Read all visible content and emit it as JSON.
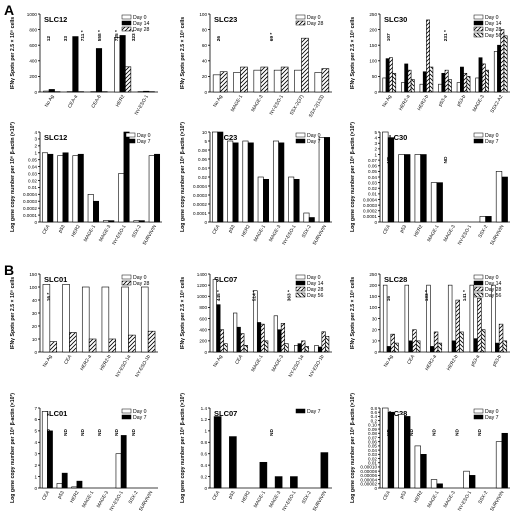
{
  "panel_letters": [
    "A",
    "B"
  ],
  "chart_data": [
    {
      "id": "A1",
      "type": "bar",
      "title": "SLC12",
      "ylabel": "IFNγ Spots per 2.5 × 10⁵ cells",
      "ylim": [
        0,
        1000
      ],
      "yticks": [
        "0",
        "200",
        "400",
        "600",
        "800",
        "1000"
      ],
      "categories": [
        "No Ag",
        "CEA-a",
        "CEA-6",
        "HER2",
        "NY-ESO-1"
      ],
      "series": [
        {
          "name": "Day 0",
          "values": [
            12,
            5,
            5,
            700,
            5
          ]
        },
        {
          "name": "Day 14",
          "values": [
            33,
            711,
            558,
            725,
            10
          ]
        },
        {
          "name": "Day 28",
          "values": [
            5,
            5,
            5,
            323,
            5
          ]
        }
      ],
      "annotations": [
        "12",
        "33",
        "711 *",
        "558 *",
        "725 *",
        "323 *"
      ]
    },
    {
      "id": "A2",
      "type": "bar",
      "title": "SLC23",
      "ylabel": "IFNγ Spots per 2.5 × 10⁵ cells",
      "ylim": [
        0,
        100
      ],
      "yticks": [
        "0",
        "20",
        "40",
        "60",
        "80",
        "100"
      ],
      "categories": [
        "No Ag",
        "MAGE-1",
        "MAGE-3",
        "NY-ESO-1",
        "SSX-2(37)",
        "SSX-2(133)"
      ],
      "series": [
        {
          "name": "Day 0",
          "values": [
            22,
            25,
            28,
            28,
            28,
            25
          ]
        },
        {
          "name": "Day 28",
          "values": [
            26,
            32,
            32,
            32,
            69,
            30
          ]
        }
      ],
      "annotations": [
        "26",
        "69 *"
      ]
    },
    {
      "id": "A3",
      "type": "bar",
      "title": "SLC30",
      "ylabel": "IFNγ Spots per 2.5 × 10⁵ cells",
      "ylim": [
        0,
        250
      ],
      "yticks": [
        "0",
        "50",
        "100",
        "150",
        "200",
        "250"
      ],
      "categories": [
        "No Ag",
        "HER2-a",
        "HER2-b",
        "p53-a",
        "p53-b",
        "MAGE-3",
        "SSX2-A2"
      ],
      "series": [
        {
          "name": "Day 0",
          "values": [
            45,
            30,
            25,
            25,
            30,
            45,
            130
          ]
        },
        {
          "name": "Day 14",
          "values": [
            107,
            90,
            65,
            60,
            80,
            110,
            150
          ]
        },
        {
          "name": "Day 28",
          "values": [
            110,
            70,
            231,
            70,
            60,
            90,
            200
          ]
        },
        {
          "name": "Day 56",
          "values": [
            60,
            40,
            80,
            40,
            50,
            70,
            180
          ]
        }
      ],
      "annotations": [
        "107",
        "231 *"
      ]
    },
    {
      "id": "A4",
      "type": "bar",
      "title": "SLC12",
      "ylabel": "Log gene copy number per 10⁶ β-actin (×10³)",
      "yticks": [
        "0",
        "0.0001",
        "0.0002",
        "0.0003",
        "0.0004",
        "0.01",
        "0.02",
        "0.03",
        "0.04",
        "0.05",
        "1",
        "2",
        "3",
        "4"
      ],
      "categories": [
        "CEA",
        "p53",
        "HER2",
        "MAGE-1",
        "MAGE-3",
        "NY-ESO-1",
        "SSX-2",
        "SURVIVIN"
      ],
      "series": [
        {
          "name": "Day 0",
          "values": [
            1,
            0.6,
            0.6,
            0.0004,
            2e-05,
            0.03,
            2e-05,
            0.6
          ]
        },
        {
          "name": "Day 7",
          "values": [
            0.8,
            1,
            0.8,
            0.0003,
            2e-05,
            4,
            2e-05,
            0.8
          ]
        }
      ]
    },
    {
      "id": "A5",
      "type": "bar",
      "title": "SLC23",
      "ylabel": "Log gene copy number per 10⁶ β-actin (×10³)",
      "yticks": [
        "0",
        "0.0001",
        "0.0002",
        "0.0003",
        "0.0004",
        "0.02",
        "0.04",
        "0.06",
        "0.08",
        "5",
        "10"
      ],
      "categories": [
        "CEA",
        "p53",
        "HER2",
        "MAGE-1",
        "MAGE-3",
        "NY-ESO-1",
        "SSX-2",
        "SURVIVIN"
      ],
      "series": [
        {
          "name": "Day 0",
          "values": [
            10,
            5,
            5,
            0.02,
            5,
            0.02,
            0.0001,
            7
          ]
        },
        {
          "name": "Day 7",
          "values": [
            10,
            4,
            4,
            0.015,
            4,
            0.015,
            5e-05,
            7
          ]
        }
      ]
    },
    {
      "id": "A6",
      "type": "bar",
      "title": "SLC30",
      "ylabel": "Log gene copy number per 10⁶ β-actin (×10³)",
      "yticks": [
        "0",
        "0.0001",
        "0.0002",
        "0.0003",
        "0.0004",
        "0.01",
        "0.02",
        "0.03",
        "0.04",
        "0.05",
        "0.06",
        "0.07",
        "1",
        "2",
        "3",
        "4",
        "5"
      ],
      "categories": [
        "CEA",
        "p53",
        "HER2",
        "MAGE-1",
        "MAGE-3",
        "NY-ESO-1",
        "SSX-2",
        "SURVIVIN"
      ],
      "series": [
        {
          "name": "Day 0",
          "values": [
            5,
            1,
            1,
            0.03,
            0,
            0,
            0.0001,
            0.05
          ]
        },
        {
          "name": "Day 7",
          "values": [
            4,
            1,
            1,
            0.03,
            0,
            0,
            0.0001,
            0.04
          ]
        }
      ],
      "annotations": [
        "ND",
        "ND"
      ]
    },
    {
      "id": "B1",
      "type": "bar",
      "title": "SLC01",
      "ylabel": "IFNγ Spots per 2.5 × 10⁵ cells",
      "yticks": [
        "0",
        "10",
        "20",
        "30",
        "40",
        "100",
        "150"
      ],
      "categories": [
        "No Ag",
        "CEA",
        "HER2-a",
        "HER2-b",
        "NY-ESO-1a",
        "NY-ESO-1b"
      ],
      "series": [
        {
          "name": "Day 0",
          "values": [
            110,
            110,
            100,
            100,
            100,
            100
          ]
        },
        {
          "name": "Day 28",
          "values": [
            8,
            15,
            10,
            10,
            13,
            16
          ]
        }
      ],
      "annotations": [
        "16 *"
      ]
    },
    {
      "id": "B2",
      "type": "bar",
      "title": "SLC07",
      "ylabel": "IFNγ Spots per 2.5 × 10⁵ cells",
      "ylim": [
        0,
        1400
      ],
      "yticks": [
        "0",
        "200",
        "400",
        "600",
        "800",
        "1000",
        "1200",
        "1400"
      ],
      "categories": [
        "No Ag",
        "CEA",
        "MAGE-1",
        "MAGE-3",
        "NY-ESO-1a",
        "NY-ESO-1b"
      ],
      "series": [
        {
          "name": "Day 0",
          "values": [
            1300,
            700,
            1100,
            650,
            120,
            120
          ]
        },
        {
          "name": "Day 14",
          "values": [
            850,
            445,
            530,
            400,
            150,
            90
          ]
        },
        {
          "name": "Day 28",
          "values": [
            400,
            330,
            500,
            514,
            200,
            363
          ]
        },
        {
          "name": "Day 56",
          "values": [
            150,
            120,
            200,
            150,
            100,
            280
          ]
        }
      ],
      "annotations": [
        "445 *",
        "514 *",
        "363 *"
      ]
    },
    {
      "id": "B3",
      "type": "bar",
      "title": "SLC28",
      "ylabel": "IFNγ Spots per 2.5 × 10⁵ cells",
      "yticks": [
        "0",
        "10",
        "20",
        "30",
        "100",
        "150",
        "200",
        "250"
      ],
      "categories": [
        "No Ag",
        "CEA",
        "HER2-a",
        "HER2-b",
        "p53-a",
        "p53-b"
      ],
      "series": [
        {
          "name": "Day 0",
          "values": [
            200,
            200,
            200,
            200,
            200,
            200
          ]
        },
        {
          "name": "Day 14",
          "values": [
            5,
            10,
            5,
            10,
            12,
            8
          ]
        },
        {
          "name": "Day 28",
          "values": [
            16,
            20,
            18,
            133,
            141,
            25
          ]
        },
        {
          "name": "Day 56",
          "values": [
            8,
            10,
            8,
            18,
            20,
            10
          ]
        }
      ],
      "annotations": [
        "16",
        "133 *",
        "141 *"
      ]
    },
    {
      "id": "B4",
      "type": "bar",
      "title": "SLC01",
      "ylabel": "Log gene copy number per 10⁶ β-actin (×10³)",
      "ylim": [
        0,
        7
      ],
      "yticks": [
        "0",
        "1",
        "2",
        "3",
        "4",
        "5",
        "6",
        "7"
      ],
      "categories": [
        "CEA",
        "p53",
        "HER2",
        "MAGE-1",
        "MAGE-3",
        "NY-ESO-1",
        "SSX-2",
        "SURVIVIN"
      ],
      "series": [
        {
          "name": "Day 0",
          "values": [
            6.7,
            0.4,
            0.1,
            0,
            0,
            3,
            0,
            0
          ]
        },
        {
          "name": "Day 7",
          "values": [
            5,
            1.3,
            0.6,
            0,
            0,
            4.6,
            0,
            0
          ]
        }
      ],
      "annotations": [
        "ND",
        "ND",
        "ND",
        "ND",
        "ND",
        "ND"
      ]
    },
    {
      "id": "B5",
      "type": "bar",
      "title": "SLC07",
      "ylabel": "Log gene copy number per 10⁶ β-actin (×10³)",
      "ylim": [
        0,
        1.4
      ],
      "yticks": [
        "0",
        "0.2",
        "0.4",
        "0.6",
        "0.8",
        "1",
        "1.2",
        "1.4"
      ],
      "categories": [
        "CEA",
        "p53",
        "HER2",
        "MAGE-1",
        "MAGE-3",
        "NY-ESO-1",
        "SSX-2",
        "SURVIVIN"
      ],
      "series": [
        {
          "name": "Day 7",
          "values": [
            1.25,
            0.9,
            0,
            0.45,
            0.2,
            0.2,
            0,
            0.62
          ]
        }
      ],
      "annotations": [
        "ND",
        "ND"
      ]
    },
    {
      "id": "B6",
      "type": "bar",
      "title": "SLC28",
      "ylabel": "Log gene copy number per 10⁶ β-actin (×10³)",
      "yticks": [
        "0",
        "0.00002",
        "0.00004",
        "0.00006",
        "0.00008",
        "0.00010",
        "0.01",
        "0.02",
        "0.03",
        "0.04",
        "0.05",
        "0.06",
        "0.07",
        "0.08",
        "0.09",
        "0.10",
        "0.2",
        "0.4",
        "0.6",
        "0.8"
      ],
      "categories": [
        "CEA",
        "p53",
        "HER2",
        "MAGE-1",
        "MAGE-3",
        "NY-ESO-1",
        "SSX-2",
        "SURVIVIN"
      ],
      "series": [
        {
          "name": "Day 0",
          "values": [
            0.8,
            0.5,
            0.05,
            4e-05,
            0,
            8e-05,
            0,
            0.06
          ]
        },
        {
          "name": "Day 7",
          "values": [
            0.6,
            0.4,
            0.03,
            2e-05,
            0,
            6e-05,
            0,
            0.08
          ]
        }
      ],
      "annotations": [
        "ND",
        "ND",
        "ND",
        "ND",
        "ND"
      ]
    }
  ]
}
